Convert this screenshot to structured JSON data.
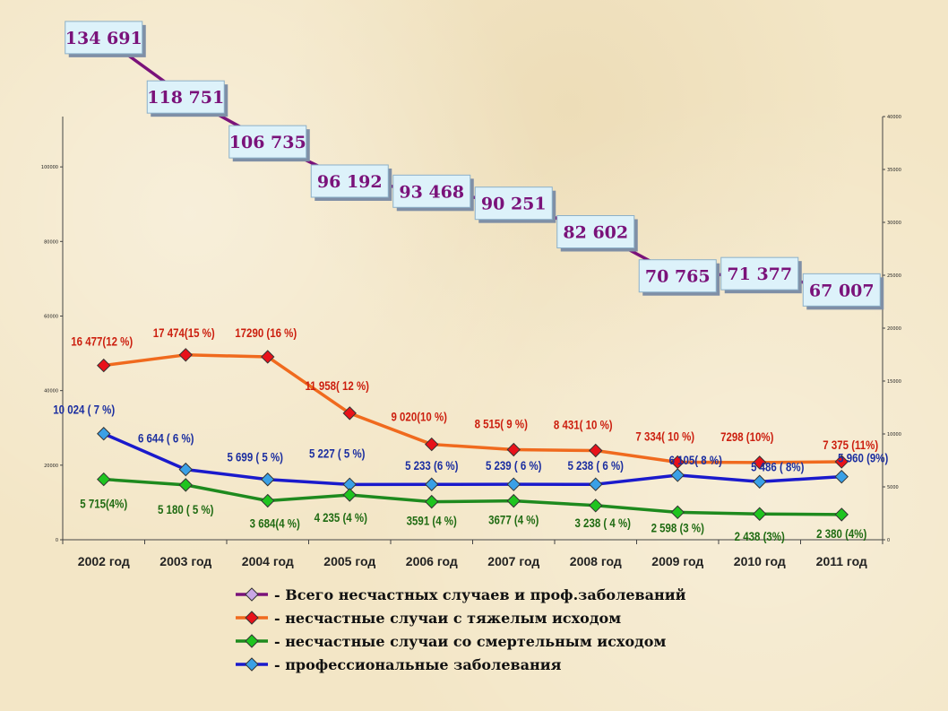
{
  "chart_data": {
    "type": "line",
    "categories": [
      "2002 год",
      "2003 год",
      "2004 год",
      "2005 год",
      "2006 год",
      "2007 год",
      "2008 год",
      "2009 год",
      "2010 год",
      "2011 год"
    ],
    "y_left": {
      "ticks": [
        "0",
        "20000",
        "40000",
        "60000",
        "80000",
        "100000"
      ],
      "range": [
        0,
        113500
      ]
    },
    "y_right": {
      "ticks": [
        "0",
        "5000",
        "10000",
        "15000",
        "20000",
        "25000",
        "30000",
        "35000",
        "40000"
      ],
      "range": [
        0,
        40000
      ]
    },
    "series": [
      {
        "name": "- Всего несчастных случаев и проф.заболеваний",
        "axis": "left",
        "color": "#7a127a",
        "marker": "#c9a6e6",
        "values": [
          134691,
          118751,
          106735,
          96192,
          93468,
          90251,
          82602,
          70765,
          71377,
          67007
        ],
        "labels": [
          "134 691",
          "118 751",
          "106 735",
          "96 192",
          "93 468",
          "90 251",
          "82 602",
          "70 765",
          "71 377",
          "67 007"
        ]
      },
      {
        "name": "- несчастные случаи с тяжелым исходом",
        "axis": "right",
        "color": "#f06a1e",
        "marker": "#e8121a",
        "values": [
          16477,
          17474,
          17290,
          11958,
          9020,
          8515,
          8431,
          7334,
          7298,
          7375
        ],
        "labels": [
          "16 477(12 %)",
          "17 474(15 %)",
          "17290 (16 %)",
          "11 958( 12 %)",
          "9 020(10 %)",
          "8 515( 9 %)",
          "8 431( 10 %)",
          "7 334( 10 %)",
          "7298 (10%)",
          "7 375 (11%)"
        ]
      },
      {
        "name": "- несчастные случаи со смертельным исходом",
        "axis": "right",
        "color": "#1e8a1e",
        "marker": "#1fc41f",
        "values": [
          5715,
          5180,
          3684,
          4235,
          3591,
          3677,
          3238,
          2598,
          2438,
          2380
        ],
        "labels": [
          "5 715(4%)",
          "5 180 ( 5 %)",
          "3 684(4 %)",
          "4 235 (4 %)",
          "3591 (4 %)",
          "3677 (4 %)",
          "3 238 ( 4 %)",
          "2 598 (3 %)",
          "2 438 (3%)",
          "2 380 (4%)"
        ]
      },
      {
        "name": "- профессиональные заболевания",
        "axis": "right",
        "color": "#1a1acc",
        "marker": "#3aa0e6",
        "values": [
          10024,
          6644,
          5699,
          5227,
          5233,
          5239,
          5238,
          6105,
          5486,
          5960
        ],
        "labels": [
          "10 024 ( 7 %)",
          "6 644 ( 6 %)",
          "5 699 ( 5 %)",
          "5 227 ( 5 %)",
          "5 233 (6 %)",
          "5 239 ( 6 %)",
          "5 238 ( 6 %)",
          "6 105( 8 %)",
          "5 486 ( 8%)",
          "5 960 (9%)"
        ]
      }
    ]
  }
}
